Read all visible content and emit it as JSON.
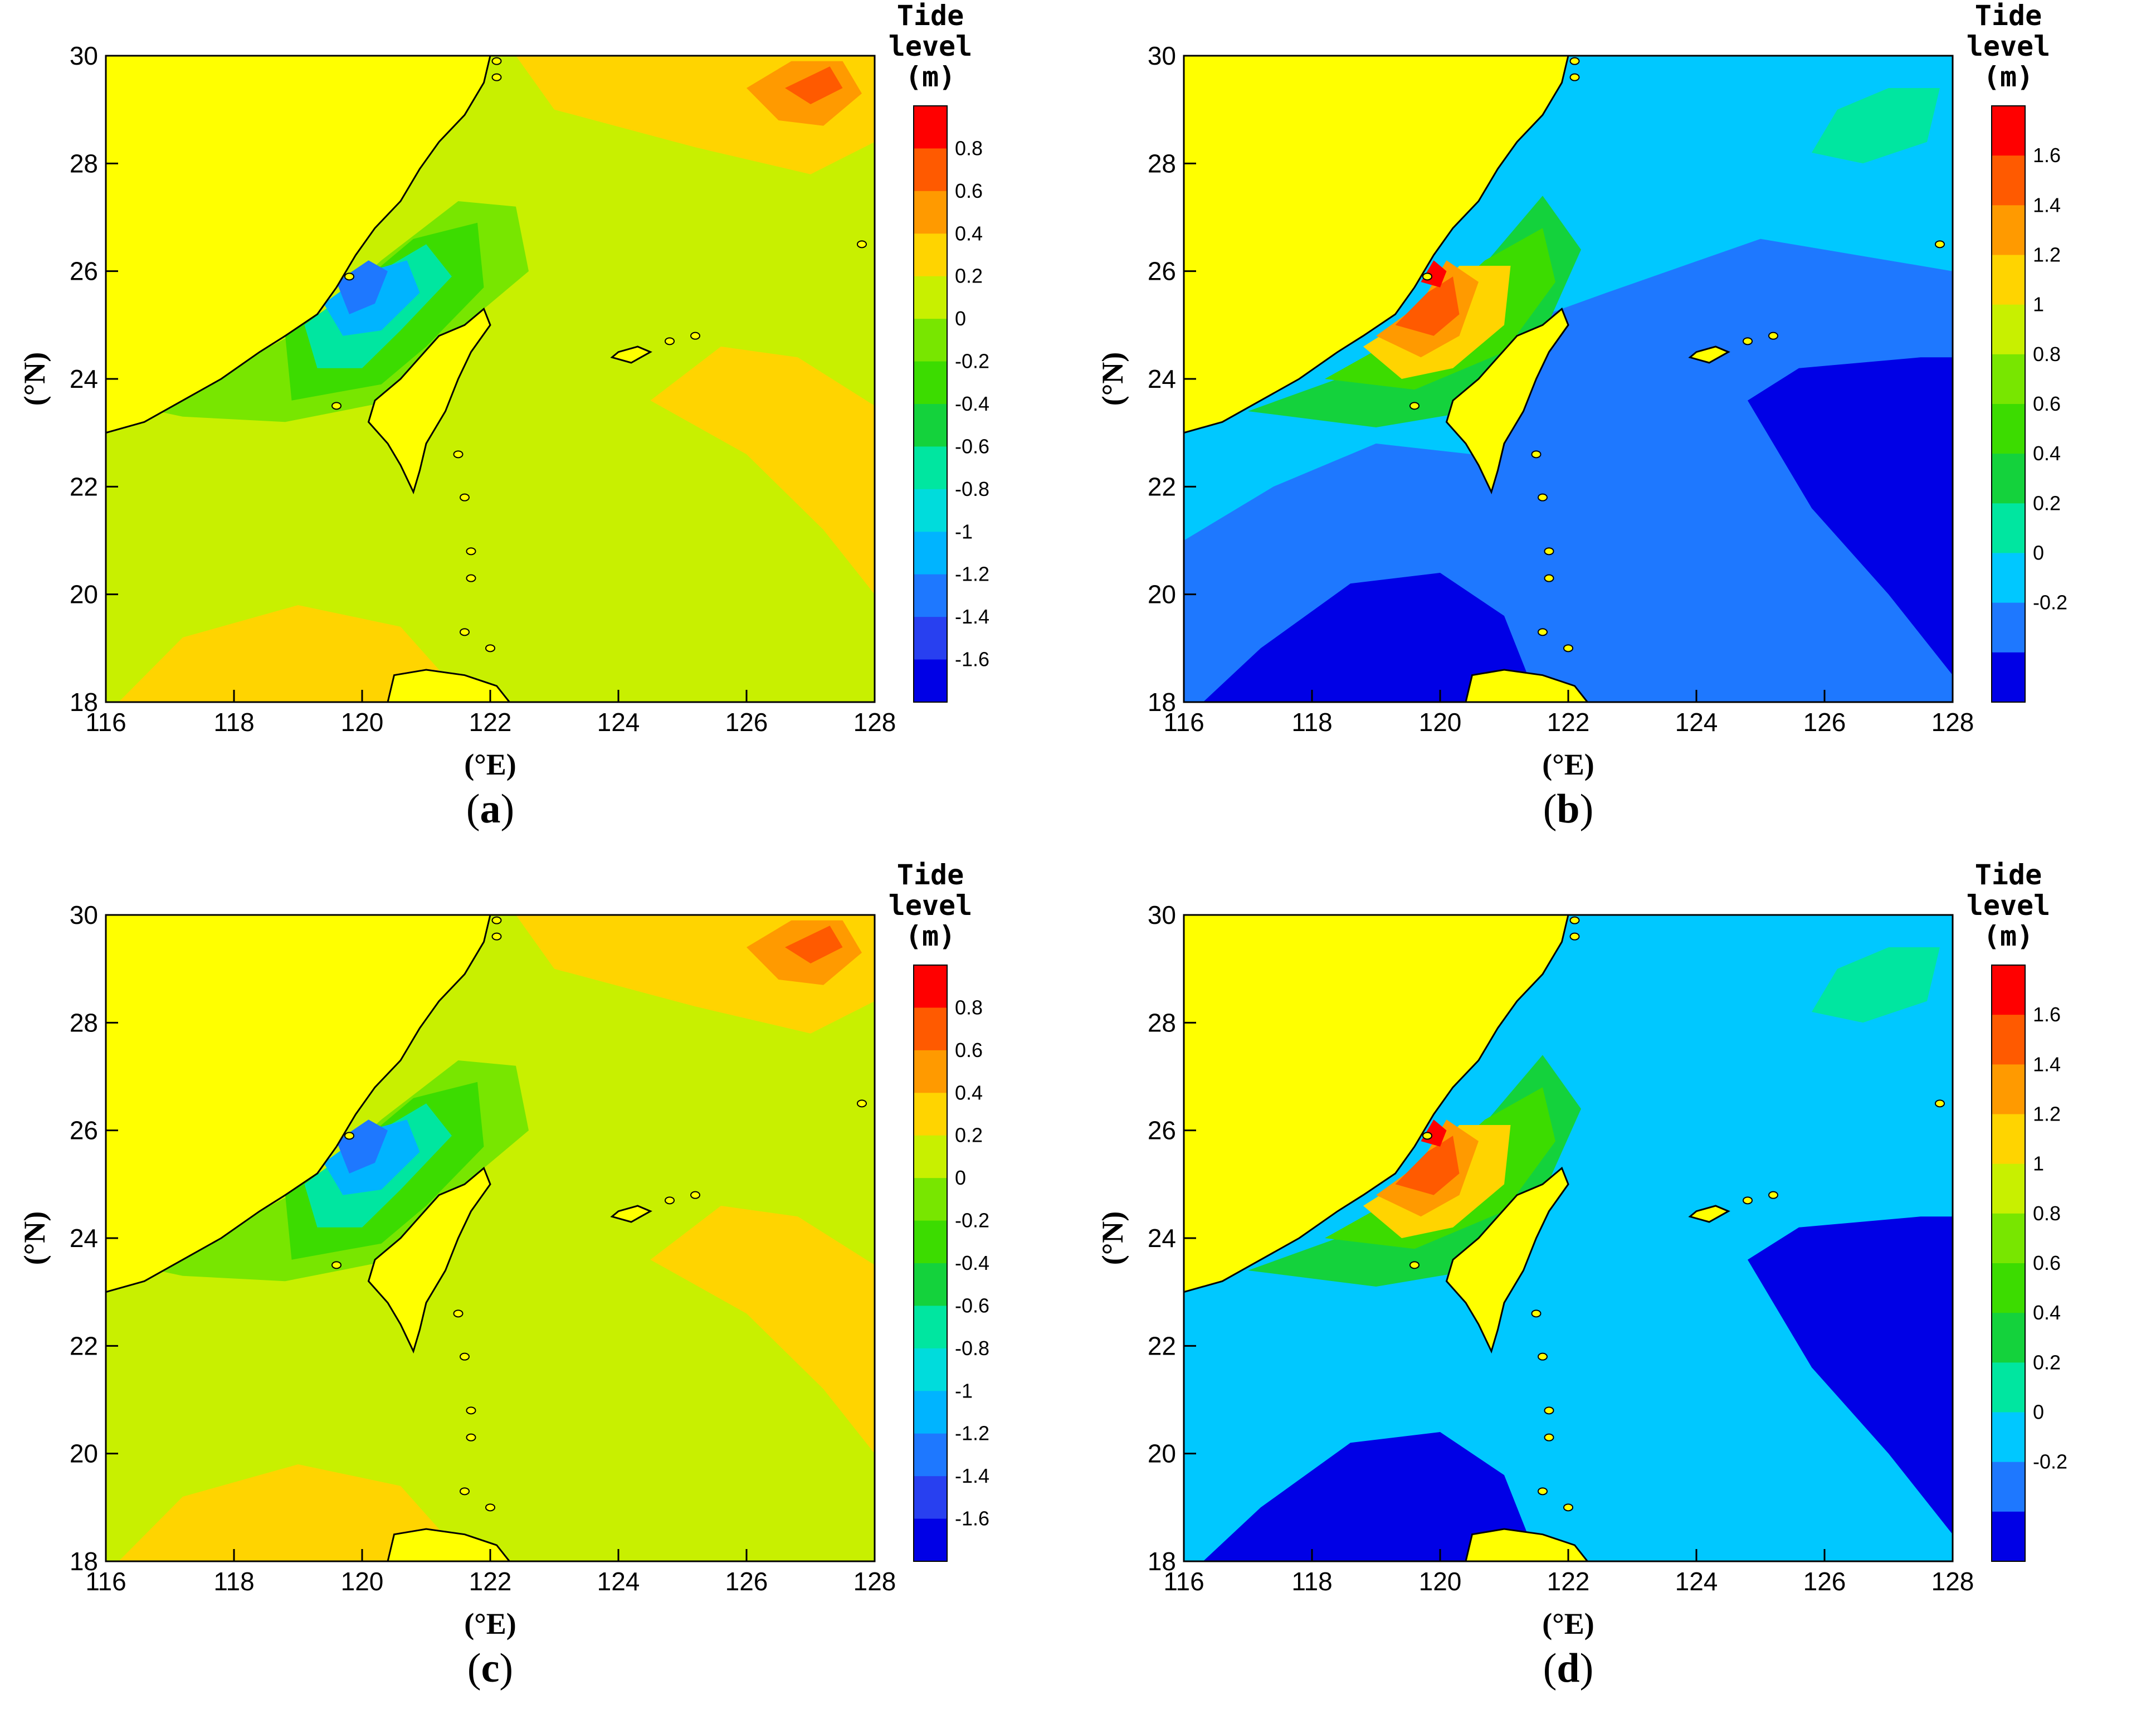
{
  "axes": {
    "xlabel": "(°E)",
    "ylabel": "(°N)",
    "x_ticks": [
      "116",
      "118",
      "120",
      "122",
      "124",
      "126",
      "128"
    ],
    "y_ticks": [
      "30",
      "28",
      "26",
      "24",
      "22",
      "20",
      "18"
    ],
    "xlim": [
      116,
      128
    ],
    "ylim": [
      18,
      30
    ]
  },
  "legend": {
    "title_line1": "Tide",
    "title_line2": "level",
    "title_line3": "(m)"
  },
  "colors": {
    "land": "#ffff00",
    "coastline": "#000000",
    "background": "#ffffff"
  },
  "chart_data": [
    {
      "type": "heatmap",
      "panel": "a",
      "caption_label": "a",
      "colorbar_ticks": [
        "0.8",
        "0.6",
        "0.4",
        "0.2",
        "0",
        "-0.2",
        "-0.4",
        "-0.6",
        "-0.8",
        "-1",
        "-1.2",
        "-1.4",
        "-1.6"
      ],
      "colorbar_colors": [
        "#ff0000",
        "#ff5a00",
        "#ff9a00",
        "#ffd400",
        "#c8f000",
        "#78e600",
        "#3cdc00",
        "#14d23c",
        "#00e6a0",
        "#00dcdc",
        "#00b4ff",
        "#1e78ff",
        "#2840f0",
        "#0000e6"
      ],
      "background_color": "#c8f000"
    },
    {
      "type": "heatmap",
      "panel": "b",
      "caption_label": "b",
      "colorbar_ticks": [
        "1.6",
        "1.4",
        "1.2",
        "1",
        "0.8",
        "0.6",
        "0.4",
        "0.2",
        "0",
        "-0.2"
      ],
      "colorbar_colors": [
        "#ff0000",
        "#ff5a00",
        "#ff9a00",
        "#ffd400",
        "#c8f000",
        "#78e600",
        "#3cdc00",
        "#14d23c",
        "#00e6a0",
        "#00c8ff",
        "#1e78ff",
        "#0000e6"
      ],
      "background_color": "#1e78ff"
    },
    {
      "type": "heatmap",
      "panel": "c",
      "caption_label": "c",
      "colorbar_ticks": [
        "0.8",
        "0.6",
        "0.4",
        "0.2",
        "0",
        "-0.2",
        "-0.4",
        "-0.6",
        "-0.8",
        "-1",
        "-1.2",
        "-1.4",
        "-1.6"
      ],
      "colorbar_colors": [
        "#ff0000",
        "#ff5a00",
        "#ff9a00",
        "#ffd400",
        "#c8f000",
        "#78e600",
        "#3cdc00",
        "#14d23c",
        "#00e6a0",
        "#00dcdc",
        "#00b4ff",
        "#1e78ff",
        "#2840f0",
        "#0000e6"
      ],
      "background_color": "#c8f000"
    },
    {
      "type": "heatmap",
      "panel": "d",
      "caption_label": "d",
      "colorbar_ticks": [
        "1.6",
        "1.4",
        "1.2",
        "1",
        "0.8",
        "0.6",
        "0.4",
        "0.2",
        "0",
        "-0.2"
      ],
      "colorbar_colors": [
        "#ff0000",
        "#ff5a00",
        "#ff9a00",
        "#ffd400",
        "#c8f000",
        "#78e600",
        "#3cdc00",
        "#14d23c",
        "#00e6a0",
        "#00c8ff",
        "#1e78ff",
        "#0000e6"
      ],
      "background_color": "#00c8ff"
    }
  ]
}
